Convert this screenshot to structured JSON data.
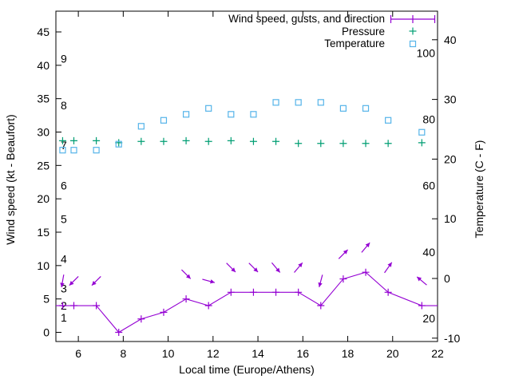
{
  "chart_data": {
    "type": "line",
    "title": "",
    "xlabel": "Local time (Europe/Athens)",
    "ylabel_left": "Wind speed (kt - Beaufort)",
    "ylabel_right": "Temperature (C - F)",
    "background": "#ffffff",
    "text_color": "#000000",
    "x_axis": {
      "range": [
        5,
        22
      ],
      "ticks": [
        6,
        8,
        10,
        12,
        14,
        16,
        18,
        20,
        22
      ]
    },
    "left_axis": {
      "units": "kt",
      "range": [
        0,
        45
      ],
      "ticks": [
        0,
        5,
        10,
        15,
        20,
        25,
        30,
        35,
        40,
        45
      ]
    },
    "right_axis": {
      "units": "C",
      "range": [
        -10,
        40
      ],
      "ticks": [
        -10,
        0,
        10,
        20,
        30,
        40
      ]
    },
    "beaufort_labels": [
      {
        "bft": "1",
        "kt": 2.2
      },
      {
        "bft": "2",
        "kt": 4.0
      },
      {
        "bft": "3",
        "kt": 6.6
      },
      {
        "bft": "4",
        "kt": 11
      },
      {
        "bft": "5",
        "kt": 17
      },
      {
        "bft": "6",
        "kt": 22
      },
      {
        "bft": "7",
        "kt": 28
      },
      {
        "bft": "8",
        "kt": 34
      },
      {
        "bft": "9",
        "kt": 41
      }
    ],
    "fahrenheit_labels": [
      {
        "f": "20",
        "c": -6.7
      },
      {
        "f": "40",
        "c": 4.4
      },
      {
        "f": "60",
        "c": 15.6
      },
      {
        "f": "80",
        "c": 26.7
      },
      {
        "f": "100",
        "c": 37.8
      }
    ],
    "x": [
      5.3,
      5.8,
      6.8,
      7.8,
      8.8,
      9.8,
      10.8,
      11.8,
      12.8,
      13.8,
      14.8,
      15.8,
      16.8,
      17.8,
      18.8,
      19.8,
      21.3
    ],
    "series": [
      {
        "name": "Wind speed, gusts, and direction",
        "color": "#9400d3",
        "marker": "plus-errorbar",
        "values_kt": [
          4,
          4,
          4,
          0,
          2,
          3,
          5,
          4,
          6,
          6,
          6,
          6,
          4,
          8,
          9,
          6,
          4
        ],
        "direction_deg": [
          190,
          225,
          225,
          null,
          null,
          null,
          135,
          105,
          135,
          135,
          140,
          40,
          195,
          45,
          40,
          35,
          310
        ],
        "edge_kt": 4,
        "note": "line extends flat to both plot edges at 4 kt; no gust bars visibly taller than wind speed"
      },
      {
        "name": "Pressure",
        "color": "#009e73",
        "marker": "plus",
        "axis": "hidden (no pressure scale shown)",
        "plotted_left_axis_equivalent_kt": [
          28.7,
          28.7,
          28.7,
          28.4,
          28.6,
          28.6,
          28.7,
          28.6,
          28.7,
          28.6,
          28.6,
          28.3,
          28.3,
          28.3,
          28.3,
          28.3,
          28.4
        ]
      },
      {
        "name": "Temperature",
        "color": "#56b4e9",
        "marker": "open-square",
        "values_c": [
          21.5,
          21.5,
          21.5,
          22.5,
          25.5,
          26.5,
          27.5,
          28.5,
          27.5,
          27.5,
          29.5,
          29.5,
          29.5,
          28.5,
          28.5,
          26.5,
          24.5
        ]
      }
    ],
    "legend": {
      "position": "top-right-inside"
    }
  }
}
